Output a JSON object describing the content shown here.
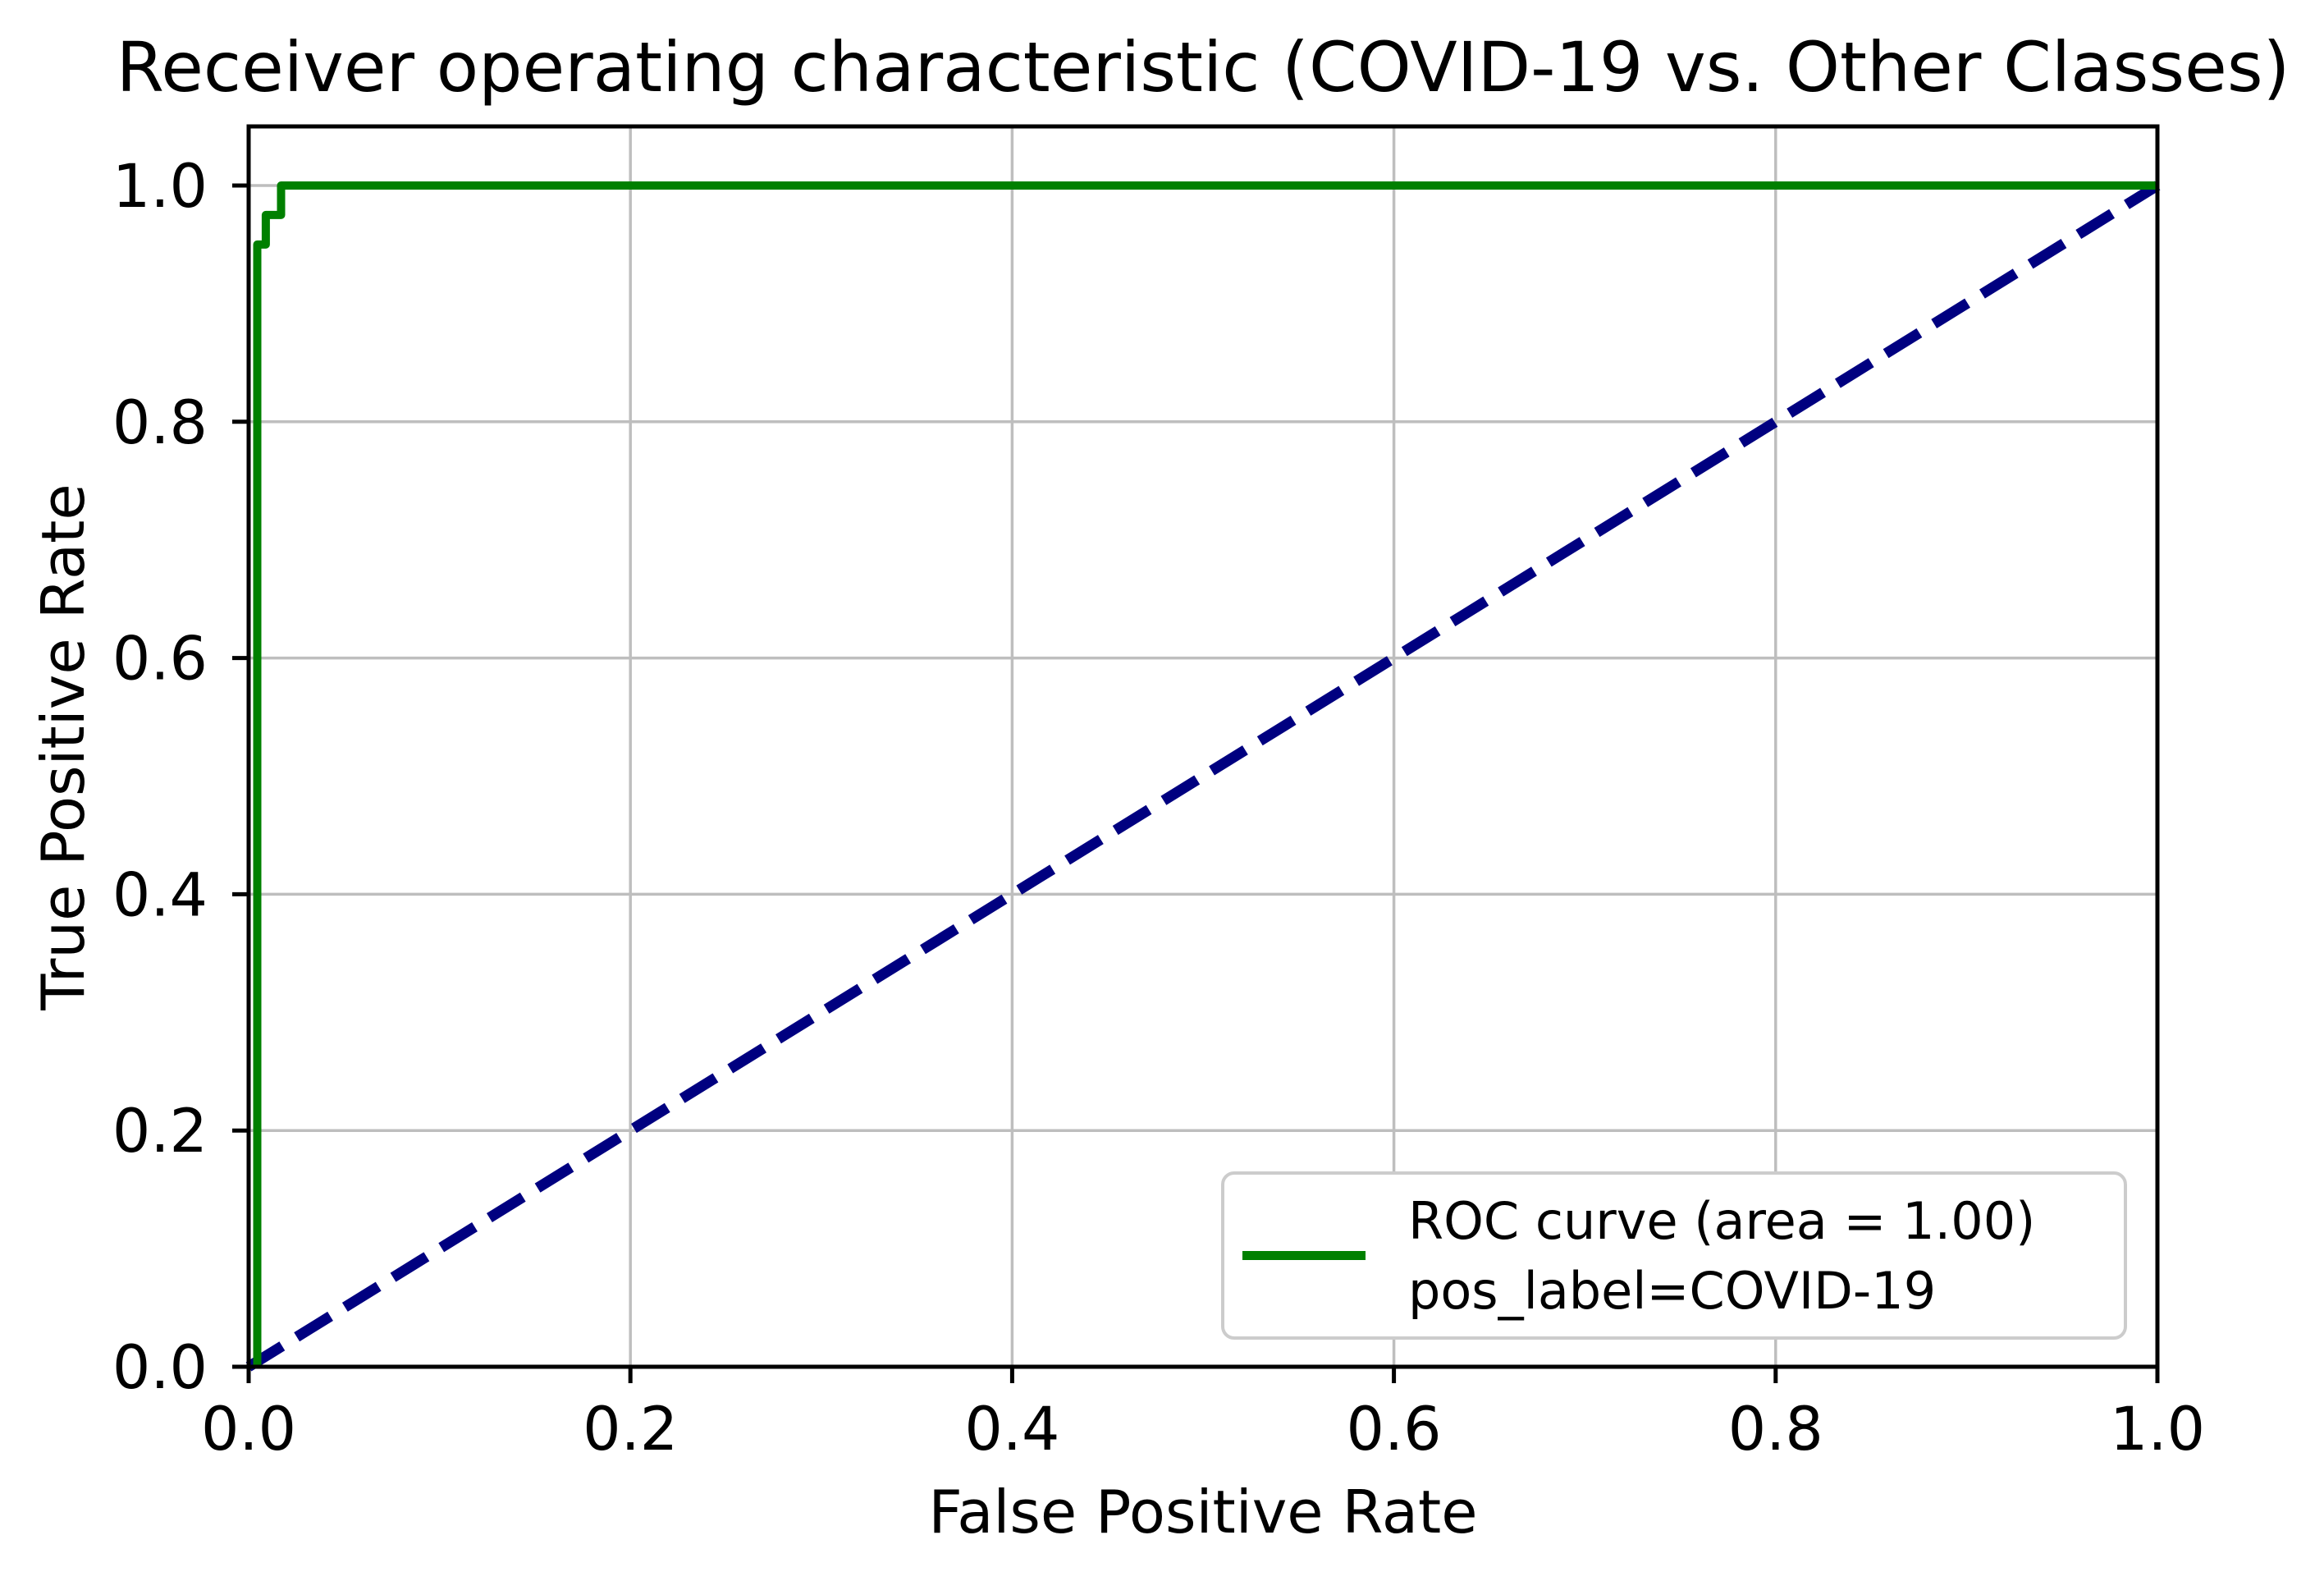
{
  "chart_data": {
    "type": "line",
    "title": "Receiver operating characteristic (COVID-19 vs. Other Classes)",
    "xlabel": "False Positive Rate",
    "ylabel": "True Positive Rate",
    "xlim": [
      0.0,
      1.0
    ],
    "ylim": [
      0.0,
      1.05
    ],
    "xticks": [
      "0.0",
      "0.2",
      "0.4",
      "0.6",
      "0.8",
      "1.0"
    ],
    "yticks": [
      "0.0",
      "0.2",
      "0.4",
      "0.6",
      "0.8",
      "1.0"
    ],
    "grid": true,
    "grid_color": "#bebebe",
    "spine_color": "#000000",
    "series": [
      {
        "name": "chance-diagonal",
        "color": "#000080",
        "line_style": "dashed",
        "line_width": 13,
        "x": [
          0.0,
          1.0
        ],
        "y": [
          0.0,
          1.0
        ]
      },
      {
        "name": "roc-curve",
        "color": "#008000",
        "line_style": "solid",
        "line_width": 10,
        "auc": 1.0,
        "pos_label": "COVID-19",
        "x": [
          0.0045,
          0.0045,
          0.009,
          0.009,
          0.017,
          0.017,
          1.0
        ],
        "y": [
          0.0,
          0.95,
          0.95,
          0.975,
          0.975,
          1.0,
          1.0
        ]
      }
    ],
    "legend": {
      "position": "lower right",
      "lines": [
        "ROC curve (area = 1.00)",
        "pos_label=COVID-19"
      ],
      "swatch_color": "#008000",
      "border_color": "#cccccc"
    }
  }
}
